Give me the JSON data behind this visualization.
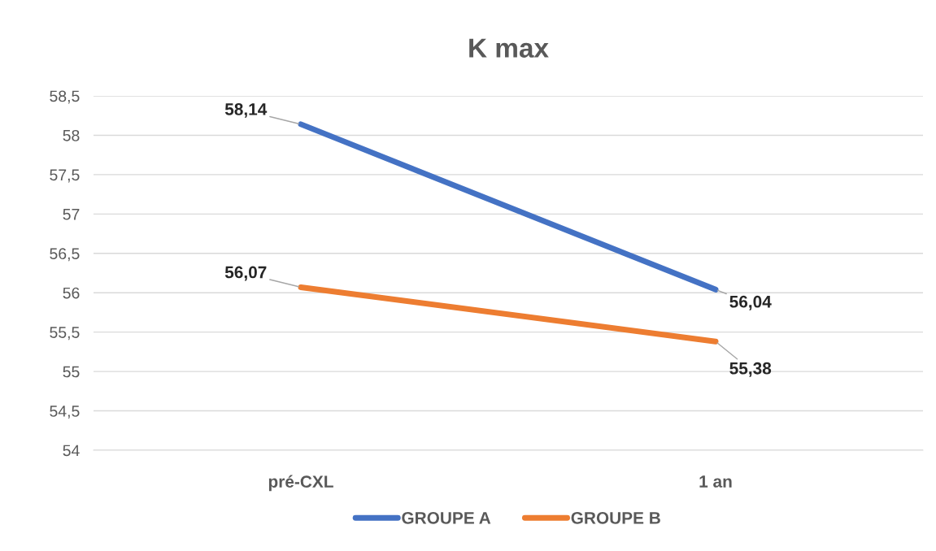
{
  "chart_data": {
    "type": "line",
    "title": "K max",
    "categories": [
      "pré-CXL",
      "1 an"
    ],
    "series": [
      {
        "name": "GROUPE A",
        "color": "#4472c4",
        "values": [
          58.14,
          56.04
        ],
        "value_labels": [
          "58,14",
          "56,04"
        ]
      },
      {
        "name": "GROUPE B",
        "color": "#ed7d31",
        "values": [
          56.07,
          55.38
        ],
        "value_labels": [
          "56,07",
          "55,38"
        ]
      }
    ],
    "ylim": [
      54,
      58.5
    ],
    "yticks": [
      {
        "value": 54,
        "label": "54"
      },
      {
        "value": 54.5,
        "label": "54,5"
      },
      {
        "value": 55,
        "label": "55"
      },
      {
        "value": 55.5,
        "label": "55,5"
      },
      {
        "value": 56,
        "label": "56"
      },
      {
        "value": 56.5,
        "label": "56,5"
      },
      {
        "value": 57,
        "label": "57"
      },
      {
        "value": 57.5,
        "label": "57,5"
      },
      {
        "value": 58,
        "label": "58"
      },
      {
        "value": 58.5,
        "label": "58,5"
      }
    ],
    "grid": "y",
    "legend": "bottom",
    "marker": "none",
    "line_style": "solid"
  }
}
